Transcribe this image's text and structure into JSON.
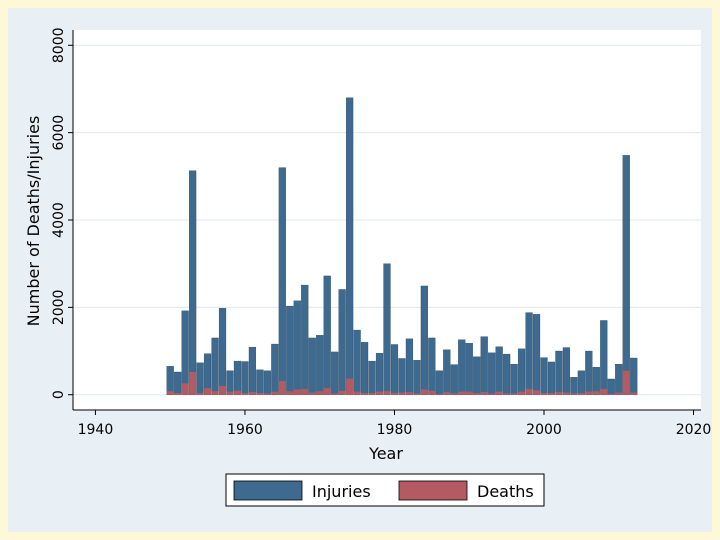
{
  "colors": {
    "outer_background": "#fdf8d6",
    "frame_background": "#e9f0f5",
    "plot_background": "#ffffff",
    "gridline": "#dfe8ef",
    "injuries": "#3d6a8e",
    "deaths": "#b45a62"
  },
  "chart_data": {
    "type": "bar",
    "title": "",
    "xlabel": "Year",
    "ylabel": "Number of Deaths/Injuries",
    "xlim": [
      1937,
      2021
    ],
    "ylim": [
      -350,
      8350
    ],
    "xticks": [
      1940,
      1960,
      1980,
      2000,
      2020
    ],
    "yticks": [
      0,
      2000,
      4000,
      6000,
      8000
    ],
    "grid": true,
    "legend_position": "bottom",
    "legend": [
      "Injuries",
      "Deaths"
    ],
    "x": [
      1950,
      1951,
      1952,
      1953,
      1954,
      1955,
      1956,
      1957,
      1958,
      1959,
      1960,
      1961,
      1962,
      1963,
      1964,
      1965,
      1966,
      1967,
      1968,
      1969,
      1970,
      1971,
      1972,
      1973,
      1974,
      1975,
      1976,
      1977,
      1978,
      1979,
      1980,
      1981,
      1982,
      1983,
      1984,
      1985,
      1986,
      1987,
      1988,
      1989,
      1990,
      1991,
      1992,
      1993,
      1994,
      1995,
      1996,
      1997,
      1998,
      1999,
      2000,
      2001,
      2002,
      2003,
      2004,
      2005,
      2006,
      2007,
      2008,
      2009,
      2010,
      2011,
      2012
    ],
    "series": [
      {
        "name": "Injuries",
        "values": [
          650,
          520,
          1920,
          5130,
          730,
          940,
          1300,
          1980,
          550,
          770,
          760,
          1090,
          570,
          550,
          1160,
          5200,
          2030,
          2150,
          2510,
          1300,
          1360,
          2720,
          980,
          2410,
          6800,
          1480,
          1200,
          770,
          950,
          3000,
          1150,
          830,
          1280,
          790,
          2490,
          1300,
          550,
          1030,
          690,
          1260,
          1180,
          870,
          1330,
          960,
          1100,
          930,
          700,
          1050,
          1880,
          1840,
          850,
          750,
          1000,
          1080,
          400,
          550,
          1000,
          630,
          1700,
          360,
          700,
          5480,
          840
        ]
      },
      {
        "name": "Deaths",
        "values": [
          80,
          40,
          260,
          520,
          40,
          150,
          80,
          200,
          70,
          90,
          40,
          60,
          40,
          30,
          70,
          310,
          80,
          120,
          130,
          50,
          80,
          150,
          30,
          90,
          370,
          70,
          40,
          40,
          70,
          80,
          40,
          50,
          60,
          30,
          120,
          90,
          15,
          60,
          30,
          70,
          70,
          40,
          60,
          30,
          70,
          30,
          30,
          70,
          130,
          100,
          40,
          40,
          60,
          50,
          30,
          40,
          70,
          80,
          130,
          20,
          50,
          550,
          50
        ]
      }
    ]
  }
}
